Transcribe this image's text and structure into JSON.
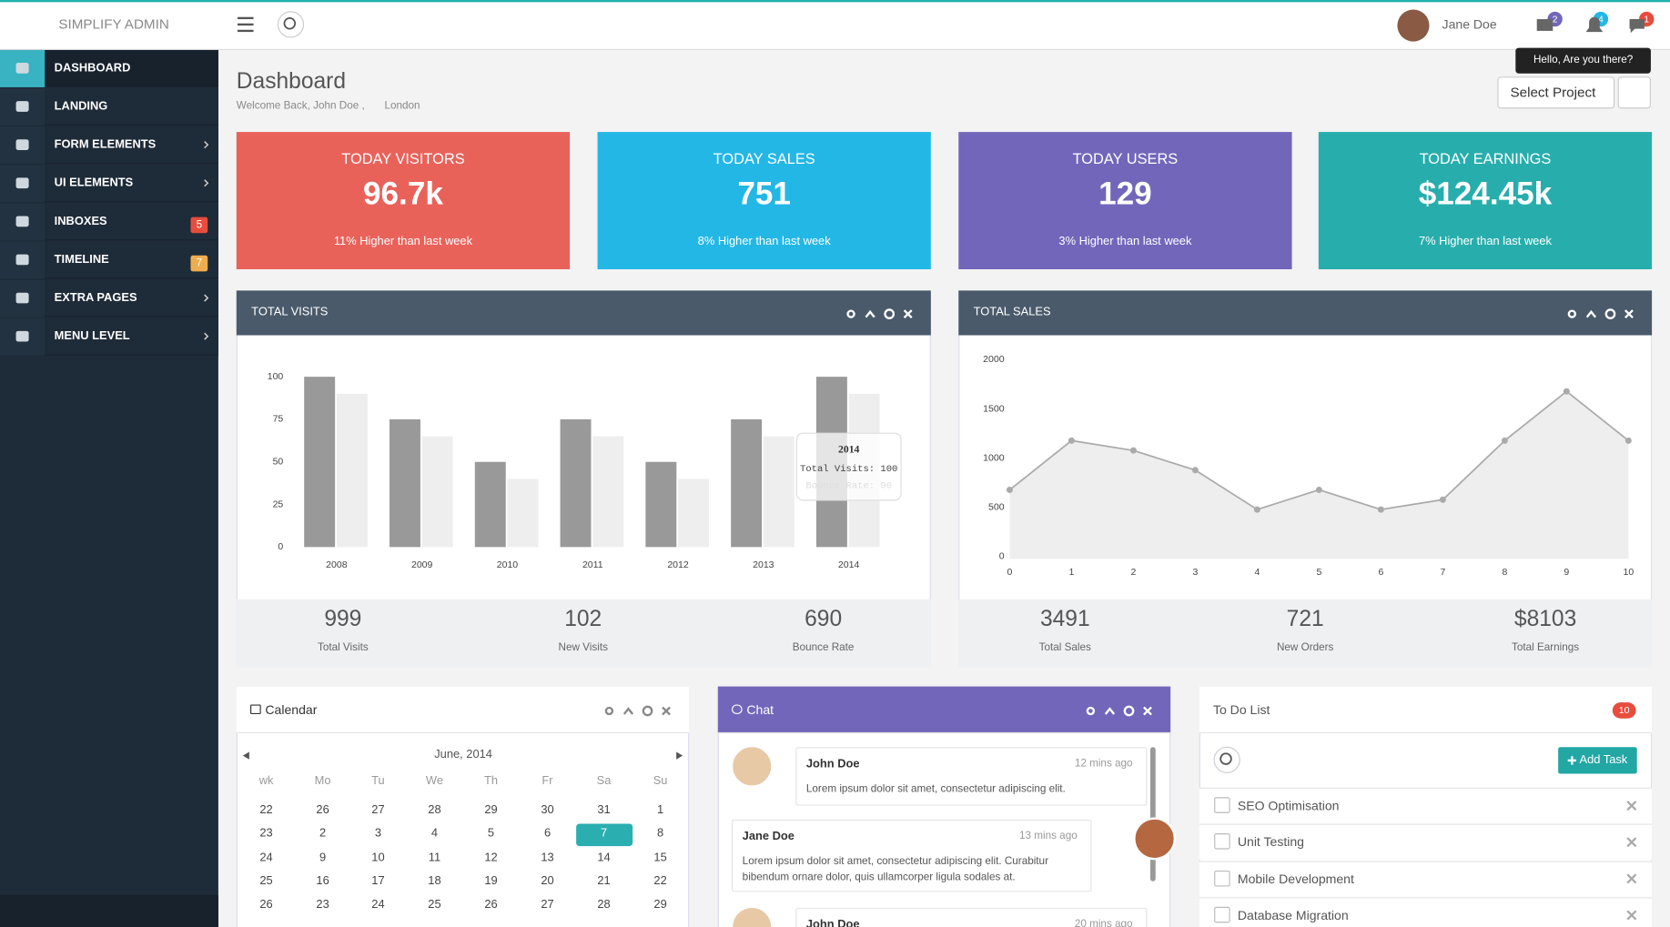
{
  "header": {
    "brand": "SIMPLIFY ADMIN",
    "user": "Jane Doe",
    "badges": [
      2,
      4,
      1
    ],
    "tooltip": "Hello, Are you there?"
  },
  "sidebar": {
    "items": [
      {
        "label": "DASHBOARD"
      },
      {
        "label": "LANDING"
      },
      {
        "label": "FORM ELEMENTS",
        "submenu": true
      },
      {
        "label": "UI ELEMENTS",
        "submenu": true
      },
      {
        "label": "INBOXES",
        "badge": 5
      },
      {
        "label": "TIMELINE",
        "badge": 7
      },
      {
        "label": "EXTRA PAGES",
        "submenu": true
      },
      {
        "label": "MENU LEVEL",
        "submenu": true
      }
    ]
  },
  "page": {
    "title": "Dashboard",
    "welcome": "Welcome Back, John Doe ,",
    "location": "London",
    "select": "Select Project"
  },
  "cards": [
    {
      "title": "TODAY VISITORS",
      "value": "96.7k",
      "note": "11% Higher than last week"
    },
    {
      "title": "TODAY SALES",
      "value": "751",
      "note": "8% Higher than last week"
    },
    {
      "title": "TODAY USERS",
      "value": "129",
      "note": "3% Higher than last week"
    },
    {
      "title": "TODAY EARNINGS",
      "value": "$124.45k",
      "note": "7% Higher than last week"
    }
  ],
  "chart_data": [
    {
      "type": "bar",
      "title": "TOTAL VISITS",
      "categories": [
        "2008",
        "2009",
        "2010",
        "2011",
        "2012",
        "2013",
        "2014"
      ],
      "series": [
        {
          "name": "Total Visits",
          "color": "#999999",
          "values": [
            100,
            75,
            50,
            75,
            50,
            75,
            100
          ]
        },
        {
          "name": "Bounce Rate",
          "color": "#eeeeee",
          "values": [
            90,
            65,
            40,
            65,
            40,
            65,
            90
          ]
        }
      ],
      "ylim": [
        0,
        100
      ],
      "yticks": [
        0,
        25,
        50,
        75,
        100
      ]
    },
    {
      "type": "line",
      "title": "TOTAL SALES",
      "x": [
        0,
        1,
        2,
        3,
        4,
        5,
        6,
        7,
        8,
        9,
        10
      ],
      "values": [
        700,
        1200,
        1100,
        900,
        500,
        700,
        500,
        600,
        1200,
        1700,
        1200
      ],
      "color": "#aaaaaa",
      "xlim": [
        0,
        10
      ],
      "xticks": [
        0,
        1,
        2,
        3,
        4,
        5,
        6,
        7,
        8,
        9,
        10
      ],
      "ylim": [
        0,
        2000
      ],
      "yticks": [
        0,
        500,
        1000,
        1500,
        2000
      ]
    }
  ],
  "panel_stats": [
    [
      {
        "value": "999",
        "label": "Total Visits"
      },
      {
        "value": "102",
        "label": "New Visits"
      },
      {
        "value": "690",
        "label": "Bounce Rate"
      }
    ],
    [
      {
        "value": "3491",
        "label": "Total Sales"
      },
      {
        "value": "721",
        "label": "New Orders"
      },
      {
        "value": "$8103",
        "label": "Total Earnings"
      }
    ]
  ],
  "calendar": {
    "title": "Calendar",
    "month": "June, 2014",
    "headers": [
      "wk",
      "Mo",
      "Tu",
      "We",
      "Th",
      "Fr",
      "Sa",
      "Su"
    ],
    "rows": [
      [
        22,
        26,
        27,
        28,
        29,
        30,
        31,
        1
      ],
      [
        23,
        2,
        3,
        4,
        5,
        6,
        7,
        8
      ],
      [
        24,
        9,
        10,
        11,
        12,
        13,
        14,
        15
      ],
      [
        25,
        16,
        17,
        18,
        19,
        20,
        21,
        22
      ],
      [
        26,
        23,
        24,
        25,
        26,
        27,
        28,
        29
      ]
    ],
    "selected": 7
  },
  "chat": {
    "title": "Chat",
    "messages": [
      {
        "name": "John Doe",
        "time": "12 mins ago",
        "text": "Lorem ipsum dolor sit amet, consectetur adipiscing elit."
      },
      {
        "name": "Jane Doe",
        "time": "13 mins ago",
        "text": "Lorem ipsum dolor sit amet, consectetur adipiscing elit. Curabitur bibendum ornare dolor, quis ullamcorper ligula sodales at."
      },
      {
        "name": "John Doe",
        "time": "20 mins ago"
      }
    ]
  },
  "todo": {
    "title": "To Do List",
    "count": 10,
    "button": "Add Task",
    "items": [
      "SEO Optimisation",
      "Unit Testing",
      "Mobile Development",
      "Database Migration"
    ]
  }
}
